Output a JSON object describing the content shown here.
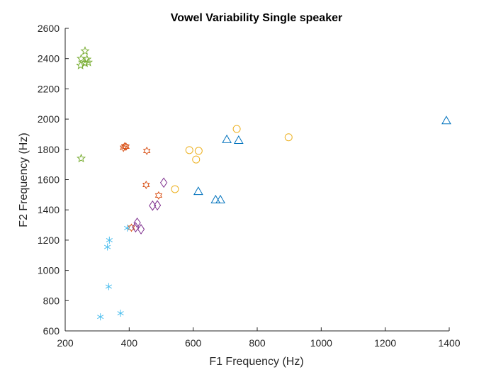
{
  "chart_data": {
    "type": "scatter",
    "title": "Vowel Variability Single speaker",
    "xlabel": "F1 Frequency (Hz)",
    "ylabel": "F2 Frequency (Hz)",
    "xlim": [
      200,
      1400
    ],
    "ylim": [
      600,
      2600
    ],
    "xticks": [
      200,
      400,
      600,
      800,
      1000,
      1200,
      1400
    ],
    "yticks": [
      600,
      800,
      1000,
      1200,
      1400,
      1600,
      1800,
      2000,
      2200,
      2400,
      2600
    ],
    "grid": false,
    "legend": "none",
    "series": [
      {
        "marker": "star5",
        "color": "#77AC30",
        "points": [
          [
            262,
            2450
          ],
          [
            250,
            2400
          ],
          [
            268,
            2395
          ],
          [
            272,
            2375
          ],
          [
            262,
            2370
          ],
          [
            248,
            2355
          ],
          [
            250,
            1740
          ]
        ]
      },
      {
        "marker": "hexagram",
        "color": "#D95319",
        "points": [
          [
            386,
            1820
          ],
          [
            390,
            1818
          ],
          [
            382,
            1810
          ],
          [
            455,
            1790
          ],
          [
            453,
            1565
          ],
          [
            492,
            1495
          ],
          [
            407,
            1282
          ]
        ]
      },
      {
        "marker": "circle",
        "color": "#EDB120",
        "points": [
          [
            736,
            1935
          ],
          [
            898,
            1880
          ],
          [
            588,
            1795
          ],
          [
            617,
            1790
          ],
          [
            609,
            1733
          ],
          [
            543,
            1537
          ]
        ]
      },
      {
        "marker": "triangle",
        "color": "#0072BD",
        "points": [
          [
            1391,
            1990
          ],
          [
            705,
            1865
          ],
          [
            742,
            1860
          ],
          [
            616,
            1522
          ],
          [
            670,
            1467
          ],
          [
            685,
            1467
          ]
        ]
      },
      {
        "marker": "diamond",
        "color": "#7E2F8E",
        "points": [
          [
            508,
            1580
          ],
          [
            473,
            1428
          ],
          [
            488,
            1430
          ],
          [
            425,
            1315
          ],
          [
            420,
            1285
          ],
          [
            437,
            1272
          ]
        ]
      },
      {
        "marker": "asterisk",
        "color": "#4DBEEE",
        "points": [
          [
            394,
            1280
          ],
          [
            338,
            1200
          ],
          [
            332,
            1155
          ],
          [
            336,
            893
          ],
          [
            373,
            717
          ],
          [
            310,
            693
          ]
        ]
      }
    ]
  }
}
